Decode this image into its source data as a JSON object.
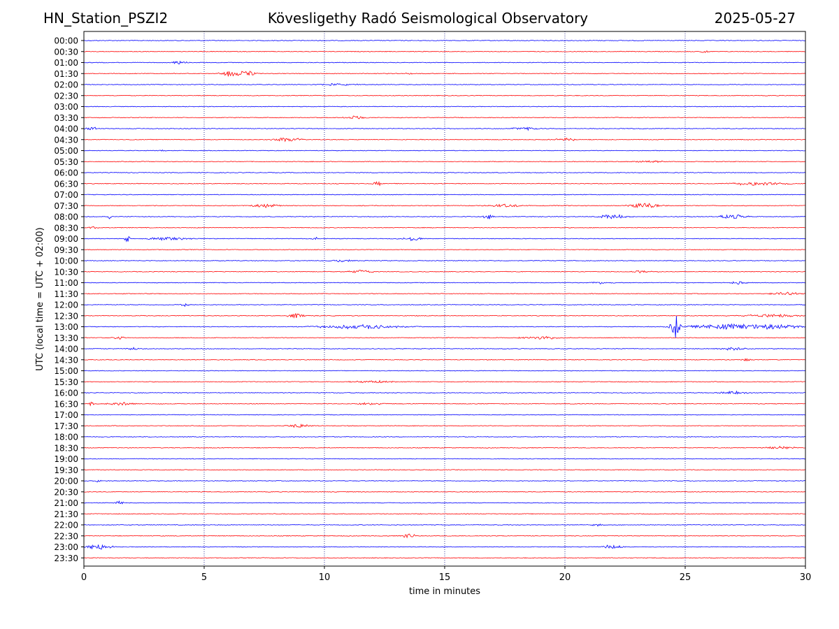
{
  "header": {
    "station": "HN_Station_PSZI2",
    "observatory": "Kövesligethy Radó Seismological Observatory",
    "date": "2025-05-27"
  },
  "colors": {
    "trace_a": "#0000ff",
    "trace_b": "#ff0000",
    "grid": "#000080"
  },
  "chart_data": {
    "type": "line",
    "title": "Kövesligethy Radó Seismological Observatory",
    "xlabel": "time in minutes",
    "ylabel": "UTC (local time = UTC + 02:00)",
    "xlim": [
      0,
      30
    ],
    "x_ticks": [
      "0",
      "5",
      "10",
      "15",
      "20",
      "25",
      "30"
    ],
    "x_tick_values": [
      0,
      5,
      10,
      15,
      20,
      25,
      30
    ],
    "grid": "vertical dotted lines at 5, 10, 15, 20, 25 minutes",
    "row_labels": [
      "00:00",
      "00:30",
      "01:00",
      "01:30",
      "02:00",
      "02:30",
      "03:00",
      "03:30",
      "04:00",
      "04:30",
      "05:00",
      "05:30",
      "06:00",
      "06:30",
      "07:00",
      "07:30",
      "08:00",
      "08:30",
      "09:00",
      "09:30",
      "10:00",
      "10:30",
      "11:00",
      "11:30",
      "12:00",
      "12:30",
      "13:00",
      "13:30",
      "14:00",
      "14:30",
      "15:00",
      "15:30",
      "16:00",
      "16:30",
      "17:00",
      "17:30",
      "18:00",
      "18:30",
      "19:00",
      "19:30",
      "20:00",
      "20:30",
      "21:00",
      "21:30",
      "22:00",
      "22:30",
      "23:00",
      "23:30"
    ],
    "row_colors": [
      "blue",
      "red"
    ],
    "bursts": [
      {
        "row": "00:30",
        "minute": 25.8,
        "amp": 1.5,
        "dur": 0.3
      },
      {
        "row": "01:00",
        "minute": 4.0,
        "amp": 2.5,
        "dur": 0.6
      },
      {
        "row": "01:30",
        "minute": 6.0,
        "amp": 4.0,
        "dur": 0.6
      },
      {
        "row": "01:30",
        "minute": 6.7,
        "amp": 4.0,
        "dur": 0.7
      },
      {
        "row": "01:30",
        "minute": 13.5,
        "amp": 1.0,
        "dur": 0.3
      },
      {
        "row": "02:00",
        "minute": 10.5,
        "amp": 1.5,
        "dur": 1.5
      },
      {
        "row": "03:30",
        "minute": 11.3,
        "amp": 2.5,
        "dur": 0.8
      },
      {
        "row": "04:00",
        "minute": 0.3,
        "amp": 2.0,
        "dur": 0.6
      },
      {
        "row": "04:00",
        "minute": 18.3,
        "amp": 2.0,
        "dur": 1.0
      },
      {
        "row": "04:30",
        "minute": 8.5,
        "amp": 3.0,
        "dur": 1.0
      },
      {
        "row": "04:30",
        "minute": 20.0,
        "amp": 2.0,
        "dur": 0.8
      },
      {
        "row": "05:00",
        "minute": 3.3,
        "amp": 2.0,
        "dur": 0.2
      },
      {
        "row": "05:30",
        "minute": 23.5,
        "amp": 1.5,
        "dur": 1.0
      },
      {
        "row": "06:30",
        "minute": 12.2,
        "amp": 4.0,
        "dur": 0.3
      },
      {
        "row": "06:30",
        "minute": 28.0,
        "amp": 2.5,
        "dur": 2.0
      },
      {
        "row": "07:30",
        "minute": 7.5,
        "amp": 2.5,
        "dur": 1.0
      },
      {
        "row": "07:30",
        "minute": 17.5,
        "amp": 2.0,
        "dur": 1.2
      },
      {
        "row": "07:30",
        "minute": 23.3,
        "amp": 3.5,
        "dur": 1.0
      },
      {
        "row": "08:00",
        "minute": 1.1,
        "amp": 5.0,
        "dur": 0.1
      },
      {
        "row": "08:00",
        "minute": 16.8,
        "amp": 4.0,
        "dur": 0.3
      },
      {
        "row": "08:00",
        "minute": 22.0,
        "amp": 3.0,
        "dur": 1.0
      },
      {
        "row": "08:00",
        "minute": 27.0,
        "amp": 3.0,
        "dur": 1.0
      },
      {
        "row": "08:30",
        "minute": 0.4,
        "amp": 1.5,
        "dur": 0.4
      },
      {
        "row": "09:00",
        "minute": 1.8,
        "amp": 5.0,
        "dur": 0.2
      },
      {
        "row": "09:00",
        "minute": 3.5,
        "amp": 2.0,
        "dur": 1.5
      },
      {
        "row": "09:00",
        "minute": 9.6,
        "amp": 5.0,
        "dur": 0.1
      },
      {
        "row": "09:00",
        "minute": 13.7,
        "amp": 2.5,
        "dur": 0.8
      },
      {
        "row": "10:00",
        "minute": 10.7,
        "amp": 1.5,
        "dur": 1.0
      },
      {
        "row": "10:30",
        "minute": 11.5,
        "amp": 2.5,
        "dur": 0.8
      },
      {
        "row": "10:30",
        "minute": 23.2,
        "amp": 1.5,
        "dur": 0.8
      },
      {
        "row": "11:00",
        "minute": 21.5,
        "amp": 1.5,
        "dur": 0.8
      },
      {
        "row": "11:00",
        "minute": 27.2,
        "amp": 2.0,
        "dur": 0.6
      },
      {
        "row": "11:30",
        "minute": 29.2,
        "amp": 2.0,
        "dur": 1.0
      },
      {
        "row": "12:00",
        "minute": 4.2,
        "amp": 4.0,
        "dur": 0.2
      },
      {
        "row": "12:30",
        "minute": 8.8,
        "amp": 3.0,
        "dur": 0.6
      },
      {
        "row": "12:30",
        "minute": 28.5,
        "amp": 2.0,
        "dur": 2.0
      },
      {
        "row": "13:00",
        "minute": 11.5,
        "amp": 3.0,
        "dur": 3.0
      },
      {
        "row": "13:00",
        "minute": 24.6,
        "amp": 16.0,
        "dur": 0.3
      },
      {
        "row": "13:00",
        "minute": 27.5,
        "amp": 4.0,
        "dur": 4.0
      },
      {
        "row": "13:30",
        "minute": 1.5,
        "amp": 2.0,
        "dur": 0.5
      },
      {
        "row": "13:30",
        "minute": 19.0,
        "amp": 2.0,
        "dur": 1.5
      },
      {
        "row": "14:00",
        "minute": 2.0,
        "amp": 2.5,
        "dur": 0.4
      },
      {
        "row": "14:00",
        "minute": 27.0,
        "amp": 2.0,
        "dur": 1.0
      },
      {
        "row": "14:30",
        "minute": 27.5,
        "amp": 1.5,
        "dur": 0.5
      },
      {
        "row": "15:30",
        "minute": 12.0,
        "amp": 1.5,
        "dur": 1.5
      },
      {
        "row": "16:00",
        "minute": 27.0,
        "amp": 2.0,
        "dur": 1.0
      },
      {
        "row": "16:30",
        "minute": 0.3,
        "amp": 3.0,
        "dur": 0.2
      },
      {
        "row": "16:30",
        "minute": 1.5,
        "amp": 2.0,
        "dur": 1.0
      },
      {
        "row": "16:30",
        "minute": 12.0,
        "amp": 1.5,
        "dur": 1.0
      },
      {
        "row": "17:30",
        "minute": 9.0,
        "amp": 3.0,
        "dur": 0.7
      },
      {
        "row": "18:30",
        "minute": 29.0,
        "amp": 2.0,
        "dur": 1.0
      },
      {
        "row": "20:00",
        "minute": 0.6,
        "amp": 1.5,
        "dur": 0.4
      },
      {
        "row": "21:00",
        "minute": 1.5,
        "amp": 3.0,
        "dur": 0.3
      },
      {
        "row": "22:00",
        "minute": 21.3,
        "amp": 1.5,
        "dur": 0.4
      },
      {
        "row": "22:30",
        "minute": 13.5,
        "amp": 3.0,
        "dur": 0.5
      },
      {
        "row": "23:00",
        "minute": 0.6,
        "amp": 4.0,
        "dur": 1.0
      },
      {
        "row": "23:00",
        "minute": 22.0,
        "amp": 4.0,
        "dur": 0.6
      }
    ]
  }
}
